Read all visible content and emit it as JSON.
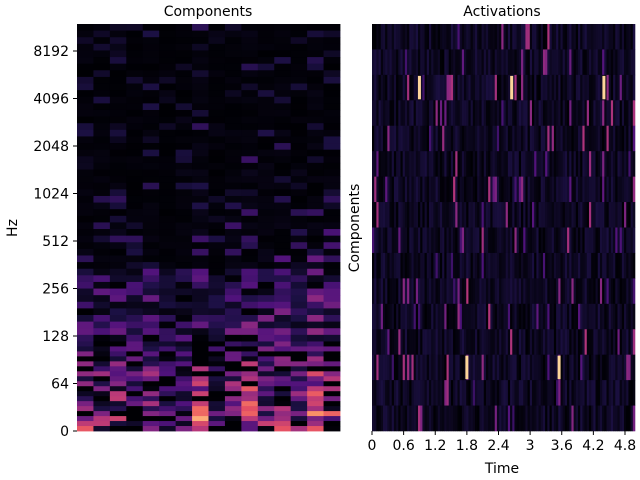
{
  "chart_data": [
    {
      "type": "heatmap",
      "title": "Components",
      "ylabel": "Hz",
      "xlabel": "",
      "y_scale": "log2-like (spectrogram frequency axis)",
      "yticks": [
        "0",
        "64",
        "128",
        "256",
        "512",
        "1024",
        "2048",
        "4096",
        "8192"
      ],
      "n_components": 16,
      "colormap": "magma"
    },
    {
      "type": "heatmap",
      "title": "Activations",
      "ylabel": "Components",
      "xlabel": "Time",
      "xticks": [
        "0",
        "0.6",
        "1.2",
        "1.8",
        "2.4",
        "3",
        "3.6",
        "4.2",
        "4.8"
      ],
      "xlim": [
        0,
        4.99
      ],
      "n_components": 16,
      "colormap": "magma",
      "bright_events": [
        {
          "component": 2,
          "time": 0.9
        },
        {
          "component": 2,
          "time": 2.65
        },
        {
          "component": 2,
          "time": 4.4
        },
        {
          "component": 13,
          "time": 1.8
        },
        {
          "component": 13,
          "time": 3.55
        }
      ]
    }
  ]
}
